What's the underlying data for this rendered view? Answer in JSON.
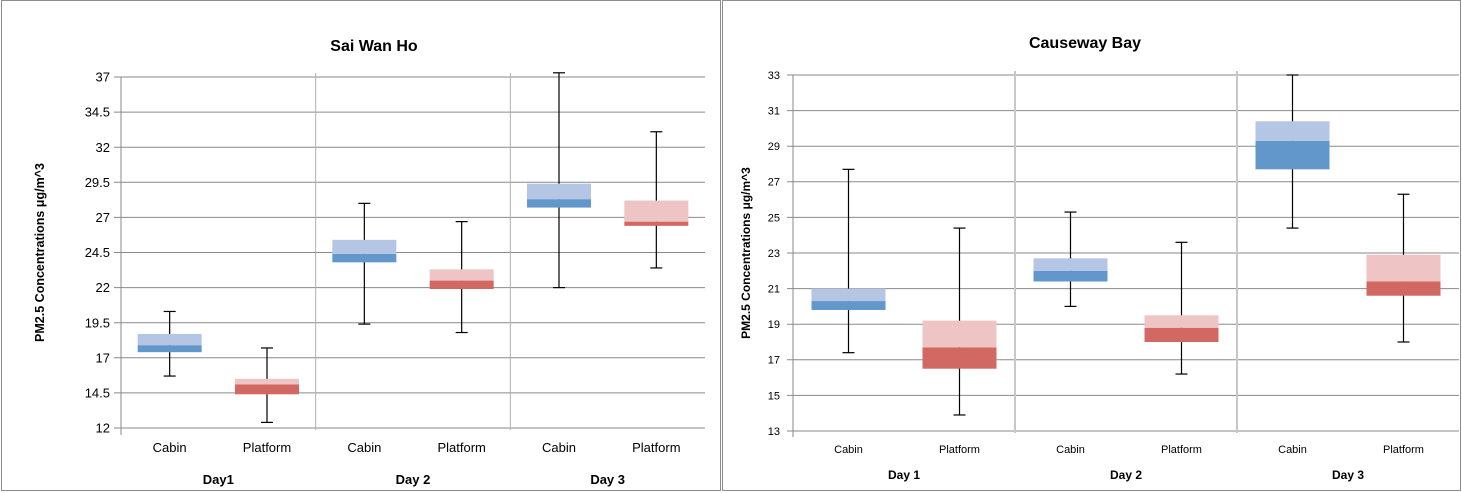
{
  "chart_data": [
    {
      "type": "box",
      "title": "Sai Wan Ho",
      "ylabel": "PM2.5 Concentrations μg/m^3",
      "ylim": [
        12,
        37
      ],
      "yticks": [
        "12",
        "14.5",
        "17",
        "19.5",
        "22",
        "24.5",
        "27",
        "29.5",
        "32",
        "34.5",
        "37"
      ],
      "grid": true,
      "groups": [
        "Day1",
        "Day 2",
        "Day 3"
      ],
      "categories": [
        "Cabin",
        "Platform"
      ],
      "boxes": [
        {
          "group": "Day1",
          "category": "Cabin",
          "min": 15.7,
          "q1": 17.4,
          "median": 17.9,
          "q3": 18.7,
          "max": 20.3
        },
        {
          "group": "Day1",
          "category": "Platform",
          "min": 12.4,
          "q1": 14.4,
          "median": 15.1,
          "q3": 15.5,
          "max": 17.7
        },
        {
          "group": "Day 2",
          "category": "Cabin",
          "min": 19.4,
          "q1": 23.8,
          "median": 24.4,
          "q3": 25.4,
          "max": 28.0
        },
        {
          "group": "Day 2",
          "category": "Platform",
          "min": 18.8,
          "q1": 21.9,
          "median": 22.5,
          "q3": 23.3,
          "max": 26.7
        },
        {
          "group": "Day 3",
          "category": "Cabin",
          "min": 22.0,
          "q1": 27.7,
          "median": 28.3,
          "q3": 29.4,
          "max": 37.3
        },
        {
          "group": "Day 3",
          "category": "Platform",
          "min": 23.4,
          "q1": 26.4,
          "median": 26.7,
          "q3": 28.2,
          "max": 33.1
        }
      ],
      "colors": {
        "cabin_lower": "#6297cb",
        "cabin_upper": "#b4c6e3",
        "platform_lower": "#d16862",
        "platform_upper": "#eec4c4",
        "grid": "#8a8a8a",
        "separator": "#b0b0b0"
      }
    },
    {
      "type": "box",
      "title": "Causeway Bay",
      "ylabel": "PM2.5 Concentrations μg/m^3",
      "ylim": [
        13,
        33
      ],
      "yticks": [
        "13",
        "15",
        "17",
        "19",
        "21",
        "23",
        "25",
        "27",
        "29",
        "31",
        "33"
      ],
      "grid": true,
      "groups": [
        "Day 1",
        "Day 2",
        "Day 3"
      ],
      "categories": [
        "Cabin",
        "Platform"
      ],
      "boxes": [
        {
          "group": "Day 1",
          "category": "Cabin",
          "min": 17.4,
          "q1": 19.8,
          "median": 20.3,
          "q3": 21.0,
          "max": 27.7
        },
        {
          "group": "Day 1",
          "category": "Platform",
          "min": 13.9,
          "q1": 16.5,
          "median": 17.7,
          "q3": 19.2,
          "max": 24.4
        },
        {
          "group": "Day 2",
          "category": "Cabin",
          "min": 20.0,
          "q1": 21.4,
          "median": 22.0,
          "q3": 22.7,
          "max": 25.3
        },
        {
          "group": "Day 2",
          "category": "Platform",
          "min": 16.2,
          "q1": 18.0,
          "median": 18.8,
          "q3": 19.5,
          "max": 23.6
        },
        {
          "group": "Day 3",
          "category": "Cabin",
          "min": 24.4,
          "q1": 27.7,
          "median": 29.3,
          "q3": 30.4,
          "max": 33.0
        },
        {
          "group": "Day 3",
          "category": "Platform",
          "min": 18.0,
          "q1": 20.6,
          "median": 21.4,
          "q3": 22.9,
          "max": 26.3
        }
      ],
      "colors": {
        "cabin_lower": "#6297cb",
        "cabin_upper": "#b4c6e3",
        "platform_lower": "#d16862",
        "platform_upper": "#eec4c4",
        "grid": "#8a8a8a",
        "separator": "#c8c8c8"
      }
    }
  ]
}
